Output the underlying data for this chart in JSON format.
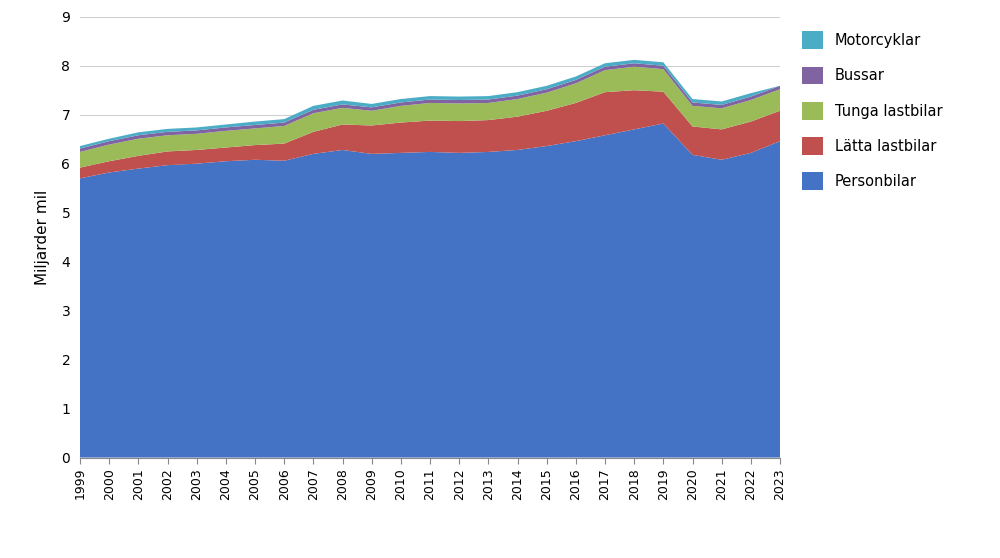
{
  "years": [
    1999,
    2000,
    2001,
    2002,
    2003,
    2004,
    2005,
    2006,
    2007,
    2008,
    2009,
    2010,
    2011,
    2012,
    2013,
    2014,
    2015,
    2016,
    2017,
    2018,
    2019,
    2020,
    2021,
    2022,
    2023
  ],
  "personbilar": [
    5.7,
    5.82,
    5.9,
    5.97,
    6.0,
    6.05,
    6.08,
    6.06,
    6.2,
    6.28,
    6.2,
    6.22,
    6.24,
    6.22,
    6.24,
    6.28,
    6.36,
    6.46,
    6.58,
    6.7,
    6.82,
    6.18,
    6.08,
    6.22,
    6.46
  ],
  "latta_lastbilar": [
    0.22,
    0.23,
    0.26,
    0.28,
    0.28,
    0.28,
    0.3,
    0.35,
    0.45,
    0.52,
    0.58,
    0.62,
    0.64,
    0.65,
    0.65,
    0.68,
    0.72,
    0.78,
    0.88,
    0.8,
    0.65,
    0.58,
    0.62,
    0.64,
    0.62
  ],
  "tunga_lastbilar": [
    0.32,
    0.34,
    0.35,
    0.33,
    0.33,
    0.34,
    0.34,
    0.36,
    0.38,
    0.34,
    0.3,
    0.34,
    0.36,
    0.36,
    0.35,
    0.36,
    0.37,
    0.4,
    0.45,
    0.48,
    0.46,
    0.42,
    0.43,
    0.44,
    0.44
  ],
  "bussar": [
    0.07,
    0.07,
    0.07,
    0.07,
    0.07,
    0.07,
    0.07,
    0.07,
    0.07,
    0.07,
    0.07,
    0.07,
    0.07,
    0.07,
    0.07,
    0.07,
    0.07,
    0.07,
    0.07,
    0.07,
    0.07,
    0.07,
    0.07,
    0.07,
    0.07
  ],
  "motorcyklar": [
    0.05,
    0.05,
    0.06,
    0.06,
    0.06,
    0.06,
    0.07,
    0.07,
    0.08,
    0.08,
    0.07,
    0.07,
    0.07,
    0.07,
    0.07,
    0.07,
    0.07,
    0.07,
    0.07,
    0.07,
    0.07,
    0.07,
    0.07,
    0.07,
    0.0
  ],
  "colors": {
    "personbilar": "#4472C4",
    "latta_lastbilar": "#C0504D",
    "tunga_lastbilar": "#9BBB59",
    "bussar": "#8064A2",
    "motorcyklar": "#4BACC6"
  },
  "ylabel": "Miljarder mil",
  "ylim": [
    0,
    9
  ],
  "yticks": [
    0,
    1,
    2,
    3,
    4,
    5,
    6,
    7,
    8,
    9
  ],
  "background_color": "#ffffff",
  "grid_color": "#d0d0d0"
}
